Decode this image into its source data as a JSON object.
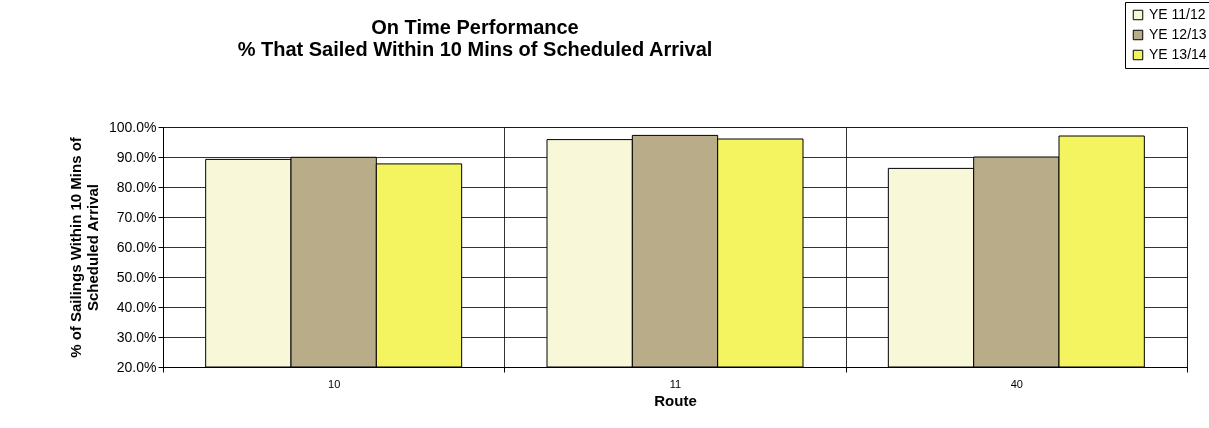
{
  "chart_data": {
    "type": "bar",
    "title": [
      "On Time Performance",
      "% That Sailed Within 10 Mins of Scheduled Arrival"
    ],
    "xlabel": "Route",
    "ylabel": [
      "% of Sailings Within 10 Mins of",
      "Scheduled Arrival"
    ],
    "categories": [
      "10",
      "11",
      "40"
    ],
    "series": [
      {
        "name": "YE 11/12",
        "color": "#f8f8d8",
        "values": [
          89.2,
          95.8,
          86.2
        ]
      },
      {
        "name": "YE 12/13",
        "color": "#b8ad88",
        "values": [
          89.9,
          97.2,
          90.0
        ]
      },
      {
        "name": "YE 13/14",
        "color": "#f4f460",
        "values": [
          87.7,
          96.0,
          97.0
        ]
      }
    ],
    "ylim": [
      20,
      100
    ],
    "yticks": [
      {
        "value": 20,
        "label": "20.0%"
      },
      {
        "value": 30,
        "label": "30.0%"
      },
      {
        "value": 40,
        "label": "40.0%"
      },
      {
        "value": 50,
        "label": "50.0%"
      },
      {
        "value": 60,
        "label": "60.0%"
      },
      {
        "value": 70,
        "label": "70.0%"
      },
      {
        "value": 80,
        "label": "80.0%"
      },
      {
        "value": 90,
        "label": "90.0%"
      },
      {
        "value": 100,
        "label": "100.0%"
      }
    ],
    "grid": true,
    "legend": "top right"
  }
}
